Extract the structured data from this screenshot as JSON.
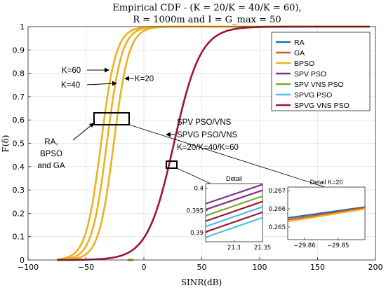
{
  "chart_data": {
    "type": "line",
    "title_line1": "Empirical CDF - (K = 20/K = 40/K = 60),",
    "title_line2": "R = 1000m and I = G_max = 50",
    "xlabel": "SINR(dB)",
    "ylabel": "F(δ)",
    "xlim": [
      -100,
      200
    ],
    "ylim": [
      0,
      1
    ],
    "xticks": [
      -100,
      -50,
      0,
      50,
      100,
      150,
      200
    ],
    "yticks": [
      0,
      0.1,
      0.2,
      0.3,
      0.4,
      0.5,
      0.6,
      0.7,
      0.8,
      0.9,
      1
    ],
    "grid": true,
    "legend_position": "top-right",
    "series": [
      {
        "name": "RA",
        "color": "#1f6fb5"
      },
      {
        "name": "GA",
        "color": "#d9541a"
      },
      {
        "name": "BPSO",
        "color": "#edb120"
      },
      {
        "name": "SPV PSO",
        "color": "#7e2f8e"
      },
      {
        "name": "SPV VNS PSO",
        "color": "#77ac30"
      },
      {
        "name": "SPVG PSO",
        "color": "#4dbeee"
      },
      {
        "name": "SPVG VNS PSO",
        "color": "#a2142f"
      }
    ],
    "curves": [
      {
        "group": "BPSO/RA/GA",
        "label": "K=60",
        "median": -37,
        "scale": 6.5,
        "color": "#edb120"
      },
      {
        "group": "BPSO/RA/GA",
        "label": "K=40",
        "median": -32,
        "scale": 6.5,
        "color": "#edb120"
      },
      {
        "group": "BPSO/RA/GA",
        "label": "K=20",
        "median": -26,
        "scale": 6.5,
        "color": "#edb120"
      },
      {
        "group": "SPV PSO/VNS, SPVG PSO/VNS",
        "label": "K=20/K=40/K=60",
        "median": 26,
        "scale": 11.5,
        "color": "#a2142f"
      }
    ],
    "annotations": {
      "k60": "K=60",
      "k40": "K=40",
      "k20": "K=20",
      "ra_line1": "RA,",
      "ra_line2": "BPSO",
      "ra_line3": "and GA",
      "spv_line1": "SPV PSO/VNS",
      "spv_line2": "SPVG PSO/VNS",
      "spv_line3": "K=20/K=40/K=60"
    },
    "inset_detail": {
      "title": "Detail",
      "xlim": [
        21.25,
        21.35
      ],
      "ylim": [
        0.388,
        0.401
      ],
      "xticks": [
        "21.3",
        "21.35"
      ],
      "yticks": [
        "0.4",
        "0.395",
        "0.39"
      ],
      "lines": [
        {
          "color": "#7e2f8e",
          "y0": 0.3965,
          "y1": 0.4008
        },
        {
          "color": "#7e2f8e",
          "y0": 0.3952,
          "y1": 0.3995
        },
        {
          "color": "#77ac30",
          "y0": 0.3938,
          "y1": 0.3982
        },
        {
          "color": "#a2142f",
          "y0": 0.3926,
          "y1": 0.397
        },
        {
          "color": "#4dbeee",
          "y0": 0.3914,
          "y1": 0.3958
        },
        {
          "color": "#a2142f",
          "y0": 0.3902,
          "y1": 0.3946
        },
        {
          "color": "#4dbeee",
          "y0": 0.389,
          "y1": 0.3934
        }
      ]
    },
    "inset_detail_k20": {
      "title": "Detail K=20",
      "xlim": [
        -29.865,
        -29.842
      ],
      "ylim": [
        0.2643,
        0.2672
      ],
      "xticks": [
        "-29.86",
        "-29.85"
      ],
      "yticks": [
        "0.267",
        "0.266",
        "0.265"
      ],
      "lines": [
        {
          "color": "#1f6fb5",
          "y0": 0.2655,
          "y1": 0.2661
        },
        {
          "color": "#d9541a",
          "y0": 0.2654,
          "y1": 0.26605
        },
        {
          "color": "#edb120",
          "y0": 0.2653,
          "y1": 0.266
        }
      ]
    }
  }
}
